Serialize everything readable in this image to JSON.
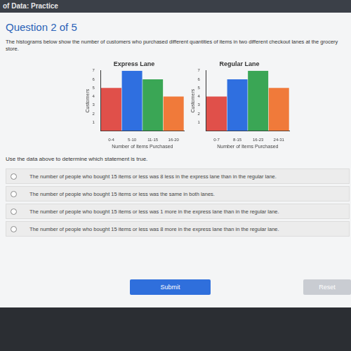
{
  "page": {
    "header": "of Data: Practice",
    "question": "Question 2 of 5",
    "prompt": "The histograms below show the number of customers who purchased different quantities of items in two different checkout lanes at the grocery store.",
    "instruction": "Use the data above to determine which statement is true.",
    "options": [
      "The number of people who bought 15 items or less was 8 less in the express lane than in the regular lane.",
      "The number of people who bought 15 items or less was the same in both lanes.",
      "The number of people who bought 15 items or less was 1 more in the express lane than in the regular lane.",
      "The number of people who bought 15 items or less was 8 more in the express lane than in the regular lane."
    ],
    "buttons": [
      "Submit",
      "Reset"
    ]
  },
  "chart_data": [
    {
      "type": "bar",
      "title": "Express Lane",
      "x_label": "Number of Items Purchased",
      "y_label": "Customers",
      "categories": [
        "0-4",
        "5-10",
        "11-15",
        "16-20"
      ],
      "values": [
        5,
        7,
        6,
        4
      ],
      "colors": [
        "#e0504a",
        "#2f6fe0",
        "#3aa655",
        "#f07a3a"
      ],
      "ylim": [
        0,
        7
      ],
      "yticks": [
        1,
        2,
        3,
        4,
        5,
        6,
        7
      ],
      "grid": false
    },
    {
      "type": "bar",
      "title": "Regular Lane",
      "x_label": "Number of Items Purchased",
      "y_label": "Customers",
      "categories": [
        "0-7",
        "8-15",
        "16-23",
        "24-31"
      ],
      "values": [
        4,
        6,
        7,
        5
      ],
      "colors": [
        "#e0504a",
        "#2f6fe0",
        "#3aa655",
        "#f07a3a"
      ],
      "ylim": [
        0,
        7
      ],
      "yticks": [
        1,
        2,
        3,
        4,
        5,
        6,
        7
      ],
      "grid": false
    }
  ]
}
